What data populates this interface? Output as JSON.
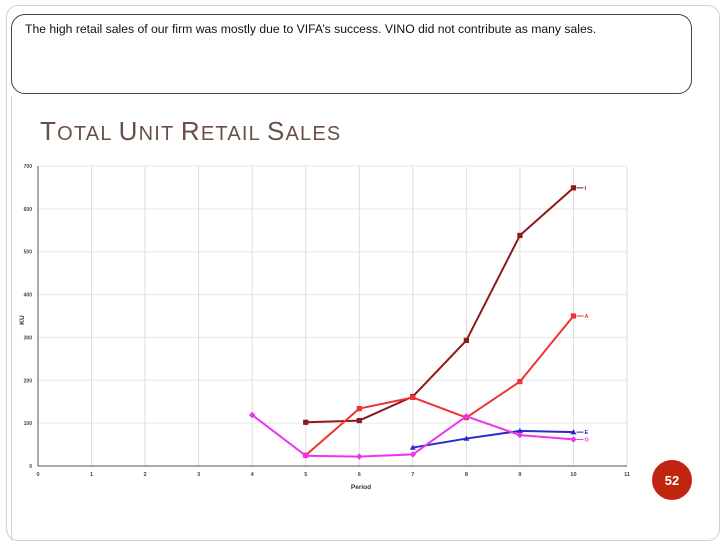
{
  "slide": {
    "callout_text": "The  high retail sales of our firm was mostly due to VIFA’s success.  VINO did not contribute as many sales.",
    "title_parts": [
      {
        "big": "T",
        "small": "OTAL "
      },
      {
        "big": "U",
        "small": "NIT "
      },
      {
        "big": "R",
        "small": "ETAIL "
      },
      {
        "big": "S",
        "small": "ALES"
      }
    ],
    "page_number": "52",
    "accent_color": "#c0250e",
    "title_color": "#6b4e45"
  },
  "chart_data": {
    "type": "line",
    "title": "",
    "xlabel": "Period",
    "ylabel": "KU",
    "xlim": [
      0,
      11
    ],
    "ylim": [
      0,
      700
    ],
    "x_ticks": [
      0,
      1,
      2,
      3,
      4,
      5,
      6,
      7,
      8,
      9,
      10,
      11
    ],
    "y_ticks": [
      0,
      100,
      200,
      300,
      400,
      500,
      600,
      700
    ],
    "grid": true,
    "series": [
      {
        "name": "I",
        "color": "#8b1a1a",
        "marker": "square",
        "x": [
          5,
          6,
          7,
          8,
          9,
          10
        ],
        "y": [
          102,
          106,
          162,
          293,
          538,
          649
        ]
      },
      {
        "name": "A",
        "color": "#ee3333",
        "marker": "square",
        "x": [
          5,
          6,
          7,
          8,
          9,
          10
        ],
        "y": [
          25,
          134,
          160,
          113,
          197,
          350
        ]
      },
      {
        "name": "E",
        "color": "#2a2acc",
        "marker": "triangle",
        "x": [
          7,
          8,
          9,
          10
        ],
        "y": [
          43,
          64,
          82,
          79
        ]
      },
      {
        "name": "O",
        "color": "#ee33ee",
        "marker": "diamond",
        "x": [
          4,
          5,
          6,
          7,
          8,
          9,
          10
        ],
        "y": [
          119,
          24,
          22,
          27,
          116,
          72,
          62
        ]
      }
    ]
  }
}
